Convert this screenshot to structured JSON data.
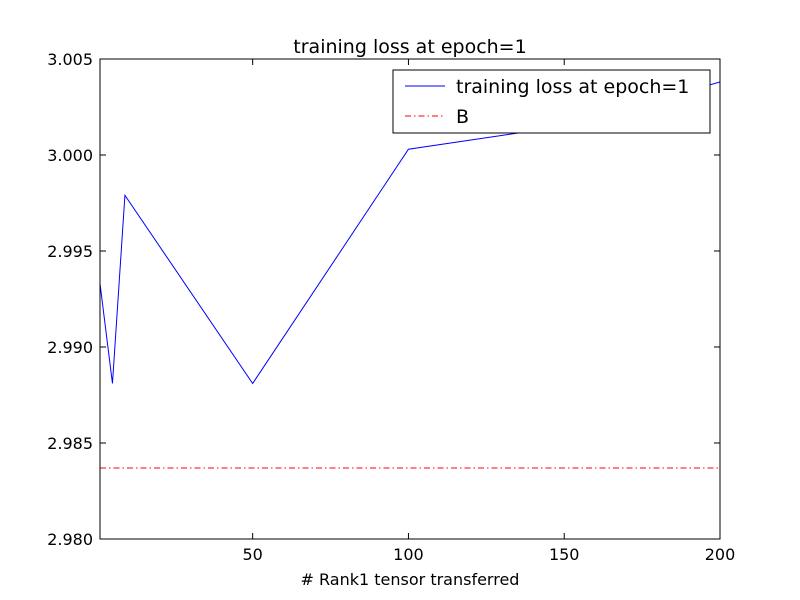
{
  "chart_data": {
    "type": "line",
    "title": "training loss at epoch=1",
    "xlabel": "# Rank1 tensor transferred",
    "ylabel": "",
    "xlim": [
      1,
      200
    ],
    "ylim": [
      2.98,
      3.005
    ],
    "xticks": [
      50,
      100,
      150,
      200
    ],
    "yticks": [
      2.98,
      2.985,
      2.99,
      2.995,
      3.0,
      3.005
    ],
    "ytick_labels": [
      "2.980",
      "2.985",
      "2.990",
      "2.995",
      "3.000",
      "3.005"
    ],
    "grid": false,
    "legend_position": "top-right",
    "series": [
      {
        "name": "training loss at epoch=1",
        "color": "#0000ff",
        "style": "solid",
        "x": [
          1,
          5,
          9,
          50,
          100,
          150,
          200
        ],
        "y": [
          2.9933,
          2.9881,
          2.9979,
          2.9881,
          3.0003,
          3.0015,
          3.0038
        ]
      },
      {
        "name": "B",
        "color": "#ff0000",
        "style": "dashdot",
        "x": [
          1,
          200
        ],
        "y": [
          2.9837,
          2.9837
        ]
      }
    ]
  }
}
